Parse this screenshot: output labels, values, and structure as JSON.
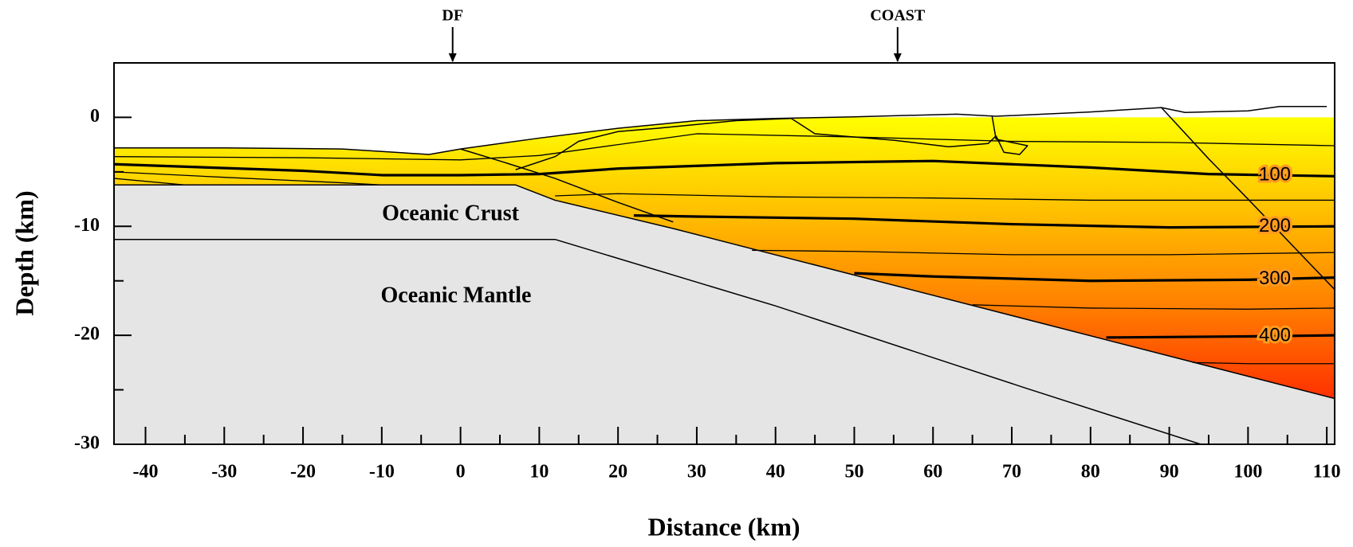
{
  "chart_data": {
    "type": "cross-section",
    "xlabel": "Distance (km)",
    "ylabel": "Depth (km)",
    "xlim": [
      -44,
      111
    ],
    "ylim": [
      -30,
      5
    ],
    "xticks": [
      -40,
      -30,
      -20,
      -10,
      0,
      10,
      20,
      30,
      40,
      50,
      60,
      70,
      80,
      90,
      100,
      110
    ],
    "xminorticks": [
      -35,
      -25,
      -15,
      -5,
      5,
      15,
      25,
      35,
      45,
      55,
      65,
      75,
      85,
      95,
      105
    ],
    "yticks": [
      0,
      -10,
      -20,
      -30
    ],
    "yminorticks": [
      -5,
      -15,
      -25
    ],
    "markers": [
      {
        "label": "DF",
        "x": -1
      },
      {
        "label": "COAST",
        "x": 55.5
      }
    ],
    "region_labels": [
      "Oceanic Crust",
      "Oceanic Mantle"
    ],
    "slab_color": "#e5e5e5",
    "temperature_colors": [
      "#ffff00",
      "#ffc000",
      "#ff8000",
      "#ff3000"
    ],
    "surface": {
      "x": [
        -44,
        -30,
        -15,
        -4,
        0,
        10,
        20,
        30,
        40,
        50,
        63,
        68,
        80,
        89,
        92,
        100,
        104,
        110
      ],
      "y": [
        -2.8,
        -2.8,
        -2.9,
        -3.4,
        -2.9,
        -1.9,
        -1.0,
        -0.3,
        -0.1,
        0.05,
        0.3,
        0.1,
        0.5,
        0.9,
        0.45,
        0.6,
        1.0,
        1.0
      ]
    },
    "slab_top": {
      "x": [
        -44,
        7,
        12,
        27,
        111
      ],
      "y": [
        -6.2,
        -6.2,
        -7.6,
        -10.2,
        -25.8
      ]
    },
    "moho": {
      "x": [
        -44,
        12,
        40,
        72,
        94
      ],
      "y": [
        -11.2,
        -11.2,
        -17.3,
        -24.9,
        -30
      ]
    },
    "contours": [
      {
        "label": "100",
        "x": [
          -44,
          -20,
          -10,
          0,
          10,
          20,
          40,
          60,
          80,
          95,
          111
        ],
        "y": [
          -4.3,
          -4.9,
          -5.3,
          -5.3,
          -5.2,
          -4.7,
          -4.2,
          -4.0,
          -4.6,
          -5.2,
          -5.4
        ]
      },
      {
        "label": "200",
        "x": [
          22,
          30,
          50,
          70,
          90,
          111
        ],
        "y": [
          -9.0,
          -9.1,
          -9.3,
          -9.8,
          -10.1,
          -10.0
        ]
      },
      {
        "label": "300",
        "x": [
          50,
          60,
          80,
          100,
          111
        ],
        "y": [
          -14.3,
          -14.6,
          -15.0,
          -14.9,
          -14.7
        ]
      },
      {
        "label": "400",
        "x": [
          82,
          100,
          111
        ],
        "y": [
          -20.2,
          -20.1,
          -20.0
        ]
      }
    ],
    "minor_contours": [
      {
        "x": [
          -44,
          -20,
          0,
          10,
          20,
          30,
          50,
          70,
          90,
          111
        ],
        "y": [
          -3.6,
          -3.7,
          -3.9,
          -3.5,
          -2.5,
          -1.5,
          -1.8,
          -2.2,
          -2.3,
          -2.6
        ]
      },
      {
        "x": [
          12,
          20,
          40,
          60,
          80,
          100,
          111
        ],
        "y": [
          -7.2,
          -7.0,
          -7.3,
          -7.4,
          -7.6,
          -7.6,
          -7.6
        ]
      },
      {
        "x": [
          37,
          50,
          70,
          90,
          111
        ],
        "y": [
          -12.2,
          -12.3,
          -12.6,
          -12.6,
          -12.4
        ]
      },
      {
        "x": [
          65,
          80,
          100,
          111
        ],
        "y": [
          -17.2,
          -17.5,
          -17.6,
          -17.5
        ]
      },
      {
        "x": [
          93,
          100,
          111
        ],
        "y": [
          -22.5,
          -22.6,
          -22.6
        ]
      },
      {
        "x": [
          -44,
          -30,
          -15,
          -10
        ],
        "y": [
          -5.0,
          -5.5,
          -6.0,
          -6.2
        ]
      },
      {
        "x": [
          -44,
          -35
        ],
        "y": [
          -5.6,
          -6.2
        ]
      }
    ],
    "structure_lines": [
      {
        "x": [
          0,
          5,
          12,
          20,
          27
        ],
        "y": [
          -2.9,
          -4.0,
          -5.6,
          -7.8,
          -9.6
        ]
      },
      {
        "x": [
          7,
          12,
          15,
          20,
          25,
          35,
          42
        ],
        "y": [
          -4.8,
          -3.6,
          -2.2,
          -1.3,
          -1.0,
          -0.3,
          -0.1
        ]
      },
      {
        "x": [
          42,
          45,
          55,
          62,
          67,
          68,
          69,
          71,
          72,
          68,
          67.5
        ],
        "y": [
          -0.1,
          -1.5,
          -2.1,
          -2.7,
          -2.4,
          -1.7,
          -3.2,
          -3.4,
          -2.6,
          -2.0,
          0.1
        ]
      },
      {
        "x": [
          89,
          95,
          100,
          111
        ],
        "y": [
          0.9,
          -3.8,
          -7.5,
          -15.8
        ]
      }
    ]
  }
}
